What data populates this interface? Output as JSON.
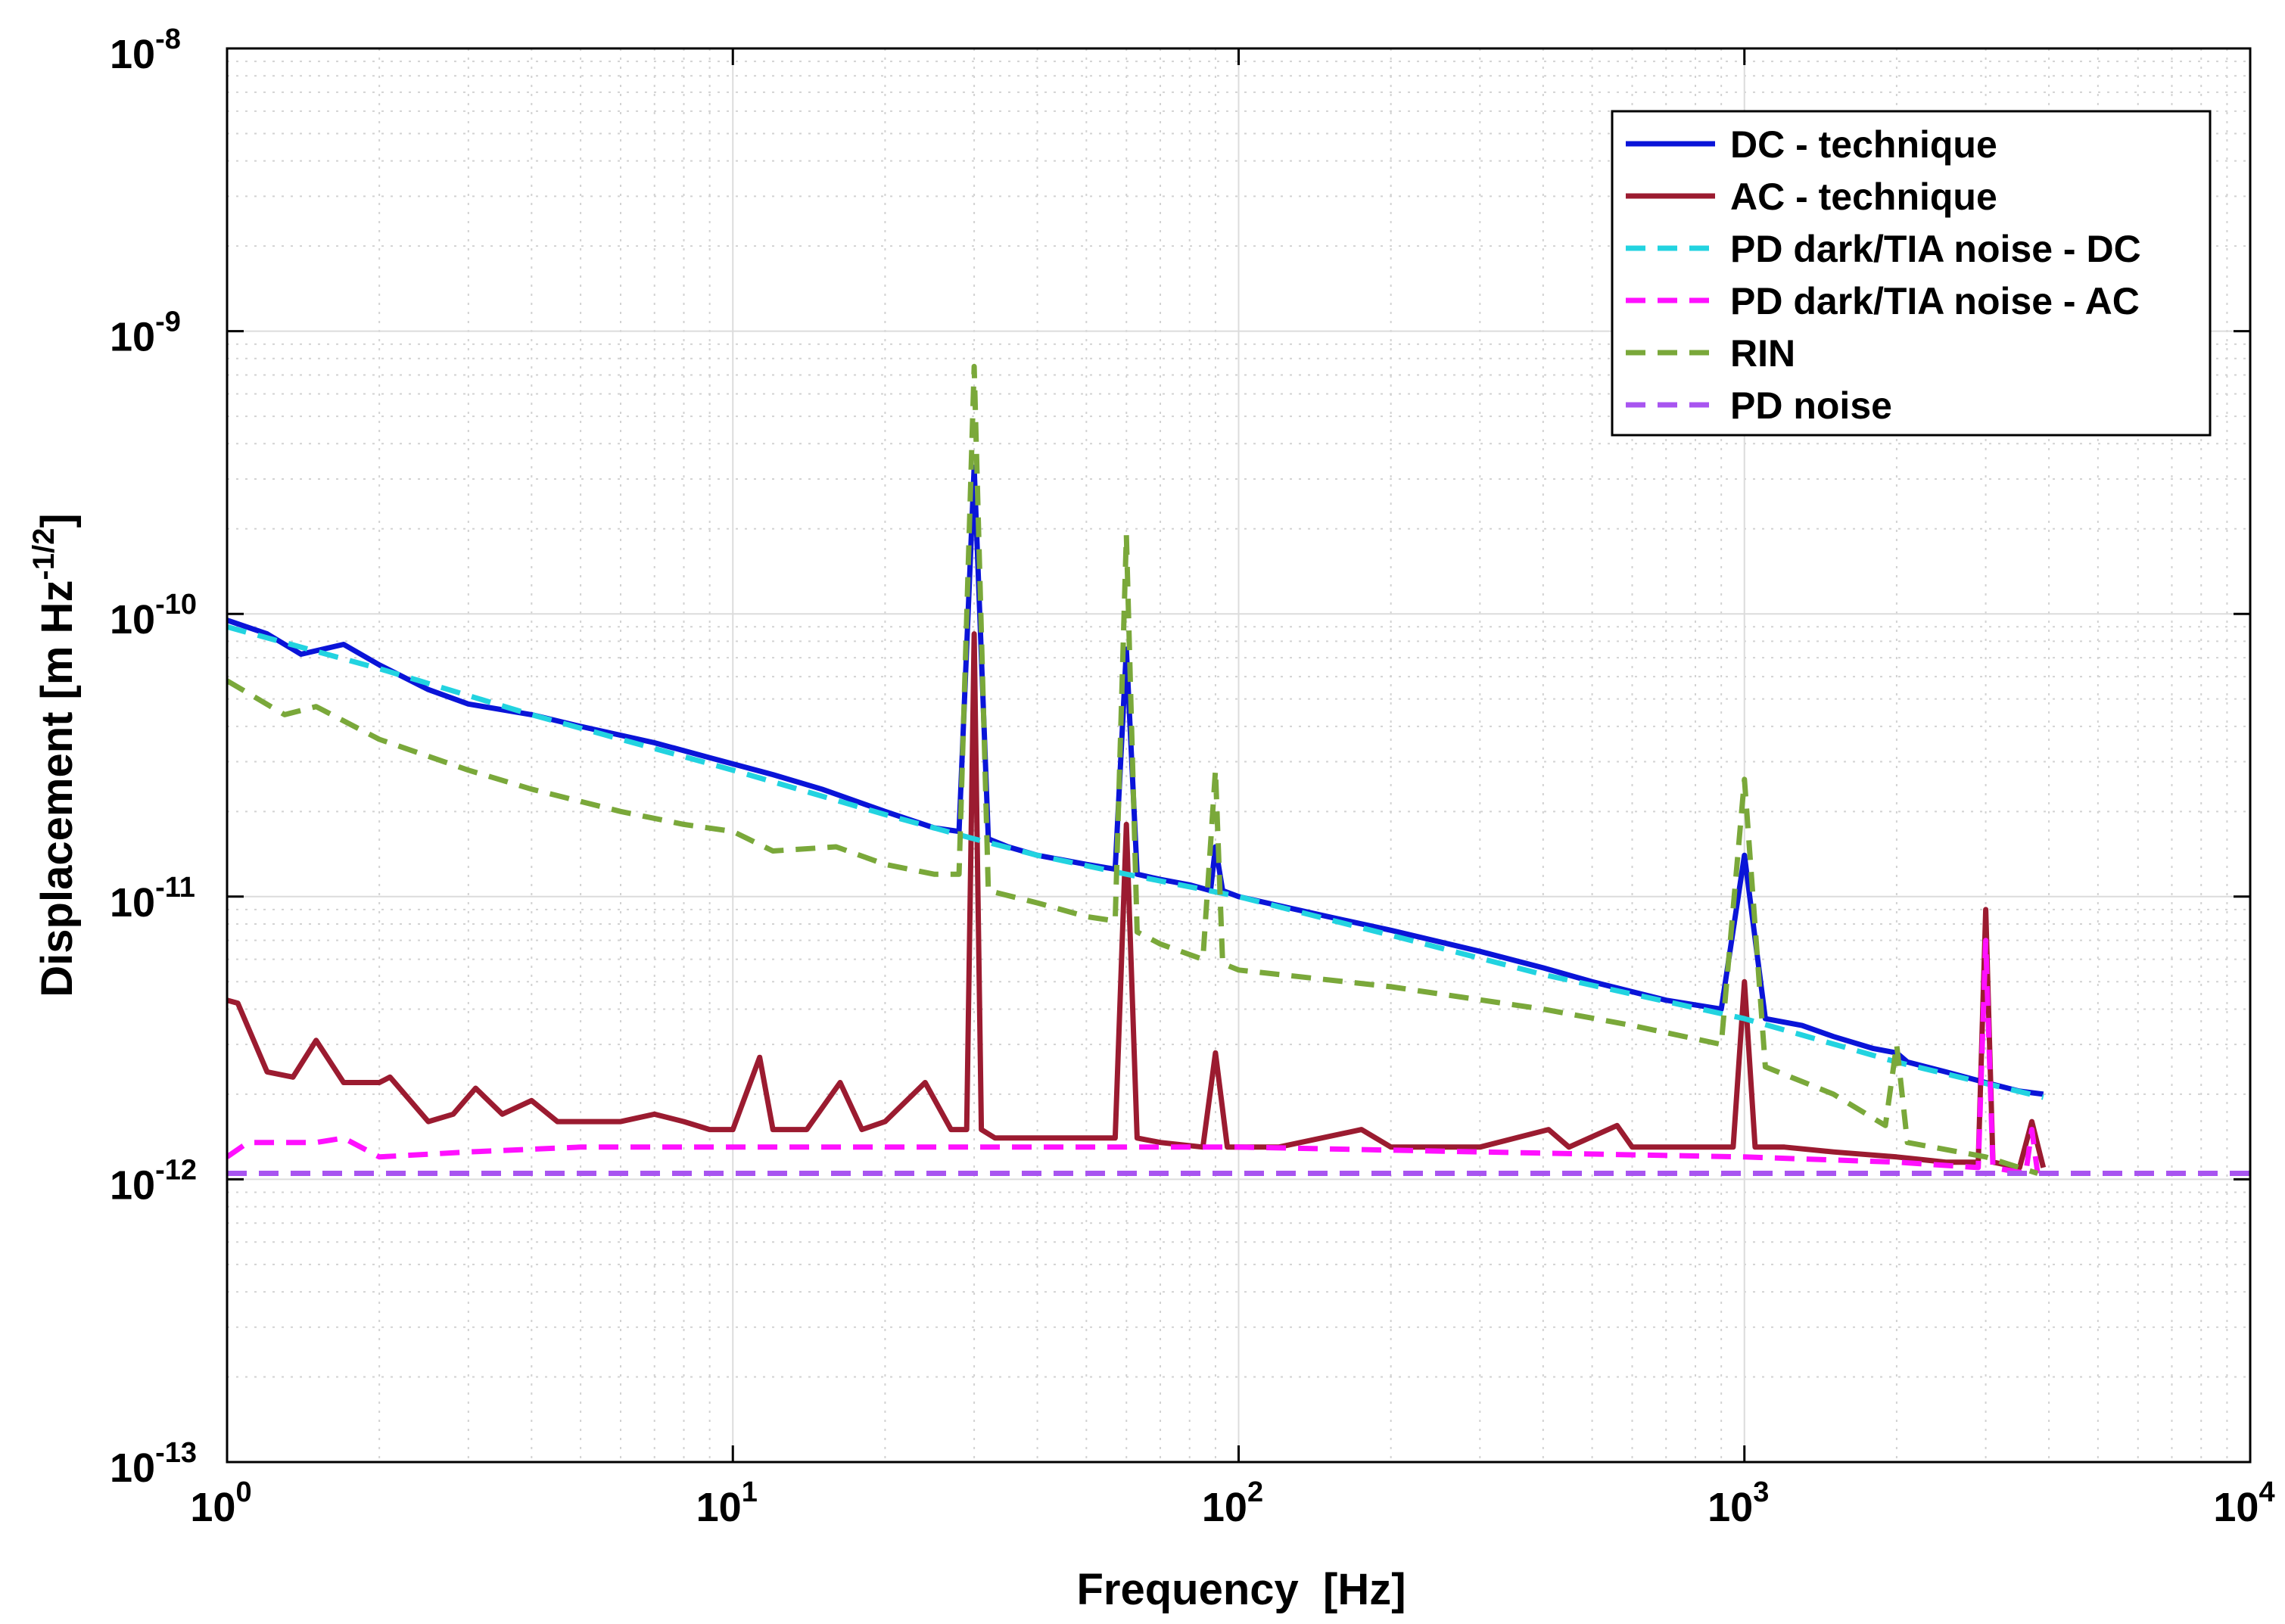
{
  "chart_data": {
    "type": "line",
    "xlabel": "Frequency  [Hz]",
    "ylabel": "Displacement [m Hz",
    "ylabel_exp": "-1/2",
    "ylabel_close": "]",
    "xscale": "log",
    "yscale": "log",
    "xlim": [
      1,
      10000
    ],
    "ylim": [
      1e-13,
      1e-08
    ],
    "grid": true,
    "minor_grid": true,
    "legend_position": "top-right",
    "x_ticks": [
      {
        "value": 1,
        "base": "10",
        "exp": "0"
      },
      {
        "value": 10,
        "base": "10",
        "exp": "1"
      },
      {
        "value": 100,
        "base": "10",
        "exp": "2"
      },
      {
        "value": 1000,
        "base": "10",
        "exp": "3"
      },
      {
        "value": 10000,
        "base": "10",
        "exp": "4"
      }
    ],
    "y_ticks": [
      {
        "value": 1e-13,
        "base": "10",
        "exp": "-13"
      },
      {
        "value": 1e-12,
        "base": "10",
        "exp": "-12"
      },
      {
        "value": 1e-11,
        "base": "10",
        "exp": "-11"
      },
      {
        "value": 1e-10,
        "base": "10",
        "exp": "-10"
      },
      {
        "value": 1e-09,
        "base": "10",
        "exp": "-9"
      },
      {
        "value": 1e-08,
        "base": "10",
        "exp": "-8"
      }
    ],
    "series": [
      {
        "name": "DC - technique",
        "color": "#0a14d8",
        "dash": false,
        "x": [
          1,
          1.2,
          1.4,
          1.7,
          2,
          2.5,
          3,
          4,
          5,
          7,
          9,
          12,
          15,
          20,
          25,
          28,
          30,
          32,
          35,
          40,
          50,
          57,
          60,
          63,
          70,
          80,
          88,
          90,
          93,
          100,
          150,
          200,
          300,
          400,
          500,
          700,
          900,
          1000,
          1100,
          1300,
          1500,
          1800,
          2000,
          2100,
          2500,
          3000,
          3500,
          3900
        ],
        "y": [
          9.5e-11,
          8.5e-11,
          7.2e-11,
          7.8e-11,
          6.6e-11,
          5.4e-11,
          4.8e-11,
          4.4e-11,
          4e-11,
          3.5e-11,
          3.1e-11,
          2.7e-11,
          2.4e-11,
          2e-11,
          1.75e-11,
          1.7e-11,
          3.3e-10,
          1.6e-11,
          1.5e-11,
          1.4e-11,
          1.3e-11,
          1.25e-11,
          7.5e-11,
          1.2e-11,
          1.15e-11,
          1.1e-11,
          1.05e-11,
          1.5e-11,
          1.05e-11,
          1e-11,
          8.5e-12,
          7.6e-12,
          6.4e-12,
          5.6e-12,
          5e-12,
          4.3e-12,
          4e-12,
          1.4e-11,
          3.7e-12,
          3.5e-12,
          3.2e-12,
          2.9e-12,
          2.8e-12,
          2.6e-12,
          2.4e-12,
          2.2e-12,
          2.05e-12,
          2e-12
        ]
      },
      {
        "name": "AC - technique",
        "color": "#9b1b30",
        "dash": false,
        "x": [
          1,
          1.05,
          1.2,
          1.35,
          1.5,
          1.7,
          2,
          2.1,
          2.5,
          2.8,
          3.1,
          3.5,
          4,
          4.5,
          5,
          6,
          7,
          8,
          9,
          10,
          11.3,
          12,
          14,
          16.3,
          18,
          20,
          24,
          27,
          29,
          30,
          31,
          33,
          40,
          50,
          57,
          60,
          63,
          70,
          85,
          90,
          95,
          120,
          175,
          200,
          300,
          410,
          450,
          560,
          600,
          800,
          950,
          1000,
          1050,
          1200,
          1500,
          2000,
          2500,
          2900,
          3000,
          3100,
          3500,
          3700,
          3900
        ],
        "y": [
          4.3e-12,
          4.2e-12,
          2.4e-12,
          2.3e-12,
          3.1e-12,
          2.2e-12,
          2.2e-12,
          2.3e-12,
          1.6e-12,
          1.7e-12,
          2.1e-12,
          1.7e-12,
          1.9e-12,
          1.6e-12,
          1.6e-12,
          1.6e-12,
          1.7e-12,
          1.6e-12,
          1.5e-12,
          1.5e-12,
          2.7e-12,
          1.5e-12,
          1.5e-12,
          2.2e-12,
          1.5e-12,
          1.6e-12,
          2.2e-12,
          1.5e-12,
          1.5e-12,
          8.5e-11,
          1.5e-12,
          1.4e-12,
          1.4e-12,
          1.4e-12,
          1.4e-12,
          1.8e-11,
          1.4e-12,
          1.35e-12,
          1.3e-12,
          2.8e-12,
          1.3e-12,
          1.3e-12,
          1.5e-12,
          1.3e-12,
          1.3e-12,
          1.5e-12,
          1.3e-12,
          1.55e-12,
          1.3e-12,
          1.3e-12,
          1.3e-12,
          5e-12,
          1.3e-12,
          1.3e-12,
          1.25e-12,
          1.2e-12,
          1.15e-12,
          1.15e-12,
          9e-12,
          1.15e-12,
          1.1e-12,
          1.6e-12,
          1.1e-12
        ]
      },
      {
        "name": "PD dark/TIA noise - DC",
        "color": "#22d3e0",
        "dash": true,
        "x": [
          1,
          2,
          4,
          10,
          20,
          30,
          40,
          60,
          100,
          200,
          400,
          1000,
          2000,
          3900
        ],
        "y": [
          9e-11,
          6.4e-11,
          4.4e-11,
          2.8e-11,
          1.95e-11,
          1.6e-11,
          1.4e-11,
          1.2e-11,
          1e-11,
          7.3e-12,
          5.3e-12,
          3.7e-12,
          2.6e-12,
          1.95e-12
        ]
      },
      {
        "name": "PD dark/TIA noise - AC",
        "color": "#ff10ff",
        "dash": true,
        "x": [
          1,
          1.1,
          1.5,
          1.7,
          2,
          3,
          5,
          10,
          30,
          60,
          100,
          300,
          1000,
          2000,
          2900,
          3000,
          3100,
          3600,
          3700,
          3800
        ],
        "y": [
          1.2e-12,
          1.35e-12,
          1.35e-12,
          1.4e-12,
          1.2e-12,
          1.25e-12,
          1.3e-12,
          1.3e-12,
          1.3e-12,
          1.3e-12,
          1.3e-12,
          1.25e-12,
          1.2e-12,
          1.15e-12,
          1.1e-12,
          7e-12,
          1.1e-12,
          1.05e-12,
          1.5e-12,
          1.05e-12
        ]
      },
      {
        "name": "RIN",
        "color": "#7aa83a",
        "dash": true,
        "x": [
          1,
          1.3,
          1.5,
          2,
          3,
          4,
          6,
          8,
          10,
          12,
          16,
          20,
          25,
          28,
          30,
          32,
          40,
          50,
          57,
          60,
          63,
          70,
          85,
          90,
          93,
          100,
          200,
          400,
          600,
          900,
          1000,
          1100,
          1500,
          1900,
          2000,
          2100,
          3000,
          3500,
          3800
        ],
        "y": [
          5.8e-11,
          4.4e-11,
          4.7e-11,
          3.6e-11,
          2.8e-11,
          2.4e-11,
          2e-11,
          1.8e-11,
          1.7e-11,
          1.45e-11,
          1.5e-11,
          1.3e-11,
          1.2e-11,
          1.2e-11,
          7.5e-10,
          1.05e-11,
          9.5e-12,
          8.5e-12,
          8.2e-12,
          1.9e-10,
          7.5e-12,
          6.8e-12,
          6e-12,
          2.8e-11,
          5.8e-12,
          5.5e-12,
          4.8e-12,
          4e-12,
          3.5e-12,
          3e-12,
          2.6e-11,
          2.5e-12,
          2e-12,
          1.55e-12,
          3e-12,
          1.35e-12,
          1.2e-12,
          1.1e-12,
          1.05e-12
        ]
      },
      {
        "name": "PD noise",
        "color": "#a855f0",
        "dash": true,
        "x": [
          1,
          10000
        ],
        "y": [
          1.05e-12,
          1.05e-12
        ]
      }
    ]
  }
}
